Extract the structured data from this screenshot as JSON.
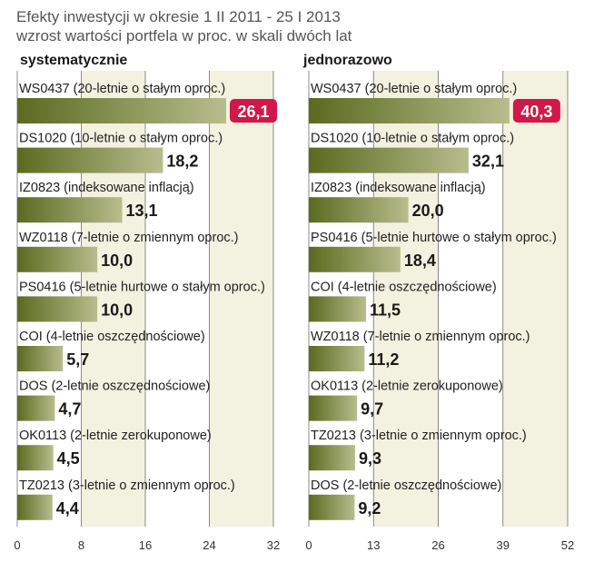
{
  "title": "Efekty inwestycji w okresie 1 II 2011 - 25 I 2013",
  "subtitle": "wzrost wartości portfela w proc. w skali dwóch lat",
  "colors": {
    "bar_dark": "#5b6a1f",
    "bar_light": "#b7bd8d",
    "highlight": "#d1184a",
    "background_band": "#f3f1df"
  },
  "chart_data": [
    {
      "type": "bar",
      "orientation": "horizontal",
      "title": "systematycznie",
      "categories": [
        "WS0437 (20-letnie o stałym oproc.)",
        "DS1020 (10-letnie o stałym oproc.)",
        "IZ0823 (indeksowane inflacją)",
        "WZ0118 (7-letnie o zmiennym oproc.)",
        "PS0416 (5-letnie hurtowe o stałym oproc.)",
        "COI (4-letnie oszczędnościowe)",
        "DOS (2-letnie oszczędnościowe)",
        "OK0113 (2-letnie zerokuponowe)",
        "TZ0213 (3-letnie o zmiennym oproc.)"
      ],
      "values": [
        26.1,
        18.2,
        13.1,
        10.0,
        10.0,
        5.7,
        4.7,
        4.5,
        4.4
      ],
      "value_labels": [
        "26,1",
        "18,2",
        "13,1",
        "10,0",
        "10,0",
        "5,7",
        "4,7",
        "4,5",
        "4,4"
      ],
      "highlighted_index": 0,
      "xlim": [
        0,
        32
      ],
      "xticks": [
        "0",
        "8",
        "16",
        "24",
        "32"
      ],
      "grid": true
    },
    {
      "type": "bar",
      "orientation": "horizontal",
      "title": "jednorazowo",
      "categories": [
        "WS0437 (20-letnie o stałym oproc.)",
        "DS1020 (10-letnie o stałym oproc.)",
        "IZ0823 (indeksowane inflacją)",
        "PS0416 (5-letnie hurtowe o stałym oproc.)",
        "COI (4-letnie oszczędnościowe)",
        "WZ0118 (7-letnie o zmiennym oproc.)",
        "OK0113 (2-letnie zerokuponowe)",
        "TZ0213 (3-letnie o zmiennym oproc.)",
        "DOS (2-letnie oszczędnościowe)"
      ],
      "values": [
        40.3,
        32.1,
        20.0,
        18.4,
        11.5,
        11.2,
        9.7,
        9.3,
        9.2
      ],
      "value_labels": [
        "40,3",
        "32,1",
        "20,0",
        "18,4",
        "11,5",
        "11,2",
        "9,7",
        "9,3",
        "9,2"
      ],
      "highlighted_index": 0,
      "xlim": [
        0,
        52
      ],
      "xticks": [
        "0",
        "13",
        "26",
        "39",
        "52"
      ],
      "grid": true
    }
  ]
}
